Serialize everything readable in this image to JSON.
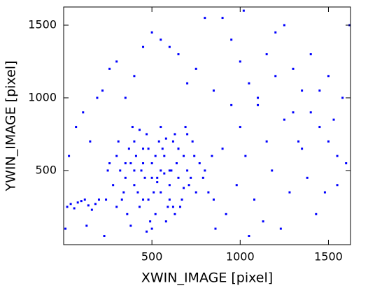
{
  "chart_data": {
    "type": "scatter",
    "x_label": "XWIN_IMAGE [pixel]",
    "y_label": "YWIN_IMAGE [pixel]",
    "xlim": [
      0,
      1625
    ],
    "ylim": [
      -10,
      1625
    ],
    "xticks": [
      500,
      1000,
      1500
    ],
    "yticks": [
      500,
      1000,
      1500
    ],
    "color": "#0000ff",
    "x": [
      300,
      350,
      400,
      450,
      500,
      550,
      600,
      650,
      700,
      750,
      320,
      370,
      420,
      470,
      520,
      570,
      620,
      670,
      720,
      770,
      280,
      330,
      380,
      430,
      480,
      530,
      580,
      630,
      680,
      730,
      260,
      310,
      360,
      410,
      460,
      510,
      560,
      610,
      660,
      710,
      340,
      390,
      440,
      490,
      540,
      590,
      640,
      690,
      740,
      790,
      300,
      350,
      400,
      450,
      500,
      550,
      600,
      650,
      700,
      800,
      380,
      430,
      480,
      530,
      580,
      630,
      680,
      250,
      820,
      840,
      400,
      450,
      500,
      550,
      600,
      650,
      470,
      520,
      570,
      620,
      900,
      950,
      1000,
      1050,
      1100,
      1150,
      1200,
      1250,
      1300,
      1350,
      1400,
      1450,
      1500,
      1550,
      1600,
      920,
      980,
      1030,
      1080,
      1130,
      1180,
      1230,
      1280,
      1330,
      1380,
      1430,
      1480,
      1530,
      1580,
      1620,
      500,
      550,
      600,
      650,
      700,
      750,
      800,
      850,
      400,
      450,
      300,
      350,
      260,
      1000,
      1100,
      1200,
      1300,
      1400,
      1450,
      1350,
      900,
      850,
      950,
      1050,
      1150,
      1250,
      1500,
      1550,
      860,
      1020,
      20,
      40,
      60,
      80,
      100,
      120,
      140,
      160,
      180,
      200,
      30,
      70,
      110,
      150,
      190,
      220,
      240,
      10,
      130,
      230
    ],
    "y": [
      600,
      450,
      700,
      300,
      550,
      800,
      400,
      650,
      500,
      350,
      500,
      650,
      350,
      750,
      200,
      600,
      700,
      300,
      450,
      550,
      400,
      300,
      550,
      250,
      650,
      450,
      150,
      750,
      600,
      700,
      550,
      700,
      200,
      600,
      450,
      350,
      650,
      500,
      250,
      400,
      350,
      800,
      500,
      150,
      700,
      250,
      550,
      800,
      600,
      450,
      250,
      550,
      400,
      650,
      100,
      500,
      300,
      450,
      750,
      500,
      120,
      780,
      300,
      420,
      720,
      200,
      380,
      500,
      350,
      600,
      500,
      550,
      450,
      350,
      500,
      650,
      80,
      600,
      480,
      250,
      1550,
      1400,
      1250,
      1100,
      950,
      1300,
      1450,
      1500,
      1200,
      1050,
      900,
      800,
      700,
      600,
      550,
      200,
      400,
      600,
      300,
      150,
      500,
      100,
      350,
      700,
      450,
      200,
      350,
      850,
      1000,
      1500,
      1450,
      1400,
      1350,
      1300,
      1100,
      1200,
      1550,
      1050,
      1150,
      1350,
      1250,
      1000,
      1200,
      800,
      1000,
      1150,
      900,
      1300,
      1050,
      650,
      650,
      300,
      950,
      50,
      700,
      850,
      1150,
      400,
      100,
      1600,
      250,
      270,
      240,
      280,
      290,
      300,
      260,
      230,
      270,
      300,
      600,
      800,
      900,
      700,
      1000,
      1050,
      300,
      100,
      120,
      50
    ]
  }
}
